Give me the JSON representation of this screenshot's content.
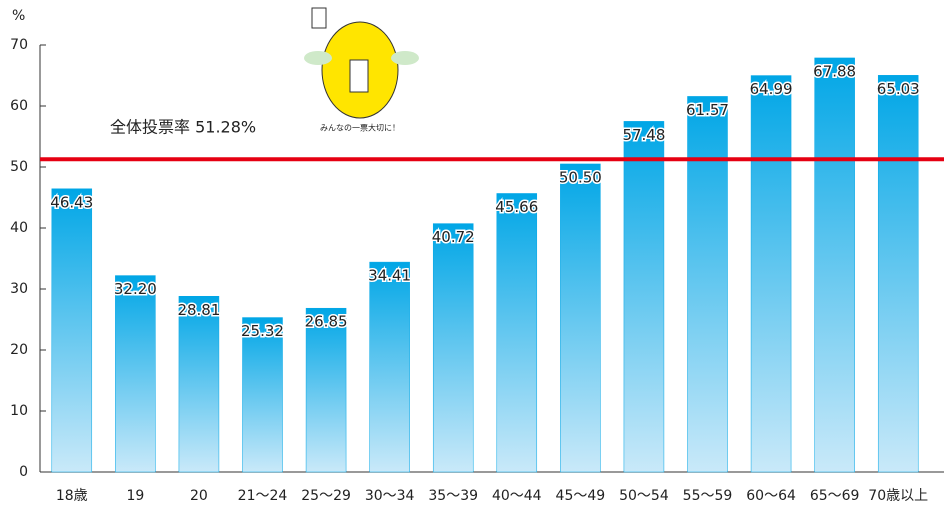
{
  "chart_data": {
    "type": "bar",
    "y_axis_label": "%",
    "categories": [
      "18歳",
      "19",
      "20",
      "21〜24",
      "25〜29",
      "30〜34",
      "35〜39",
      "40〜44",
      "45〜49",
      "50〜54",
      "55〜59",
      "60〜64",
      "65〜69",
      "70歳以上"
    ],
    "values": [
      46.43,
      32.2,
      28.81,
      25.32,
      26.85,
      34.41,
      40.72,
      45.66,
      50.5,
      57.48,
      61.57,
      64.99,
      67.88,
      65.03
    ],
    "value_labels": [
      "46.43",
      "32.20",
      "28.81",
      "25.32",
      "26.85",
      "34.41",
      "40.72",
      "45.66",
      "50.50",
      "57.48",
      "61.57",
      "64.99",
      "67.88",
      "65.03"
    ],
    "color": "#00a6e6",
    "ylim": [
      0,
      70
    ],
    "yticks": [
      0,
      10,
      20,
      30,
      40,
      50,
      60,
      70
    ],
    "grid": false,
    "reference_line": {
      "value": 51.28,
      "label": "全体投票率 51.28%",
      "color": "#e60012"
    },
    "mascot_caption": "みんなの一票大切に！"
  }
}
